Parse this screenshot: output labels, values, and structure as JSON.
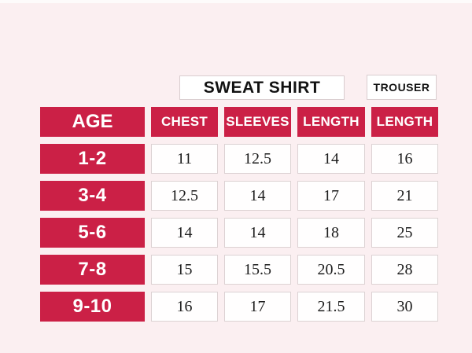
{
  "page": {
    "background_color": "#fbeff1",
    "accent_color": "#cb2046",
    "cell_border_color": "#dcd2d3"
  },
  "headers": {
    "sweat_shirt": "SWEAT SHIRT",
    "trouser": "TROUSER"
  },
  "table": {
    "age_header": "AGE",
    "columns": [
      "CHEST",
      "SLEEVES",
      "LENGTH",
      "LENGTH"
    ],
    "rows": [
      {
        "age": "1-2",
        "values": [
          "11",
          "12.5",
          "14",
          "16"
        ]
      },
      {
        "age": "3-4",
        "values": [
          "12.5",
          "14",
          "17",
          "21"
        ]
      },
      {
        "age": "5-6",
        "values": [
          "14",
          "14",
          "18",
          "25"
        ]
      },
      {
        "age": "7-8",
        "values": [
          "15",
          "15.5",
          "20.5",
          "28"
        ]
      },
      {
        "age": "9-10",
        "values": [
          "16",
          "17",
          "21.5",
          "30"
        ]
      }
    ]
  },
  "chart_data": {
    "type": "table",
    "title": "",
    "group_headers": [
      "SWEAT SHIRT",
      "TROUSER"
    ],
    "columns": [
      "AGE",
      "CHEST",
      "SLEEVES",
      "LENGTH",
      "LENGTH"
    ],
    "rows": [
      [
        "1-2",
        11,
        12.5,
        14,
        16
      ],
      [
        "3-4",
        12.5,
        14,
        17,
        21
      ],
      [
        "5-6",
        14,
        14,
        18,
        25
      ],
      [
        "7-8",
        15,
        15.5,
        20.5,
        28
      ],
      [
        "9-10",
        16,
        17,
        21.5,
        30
      ]
    ]
  }
}
